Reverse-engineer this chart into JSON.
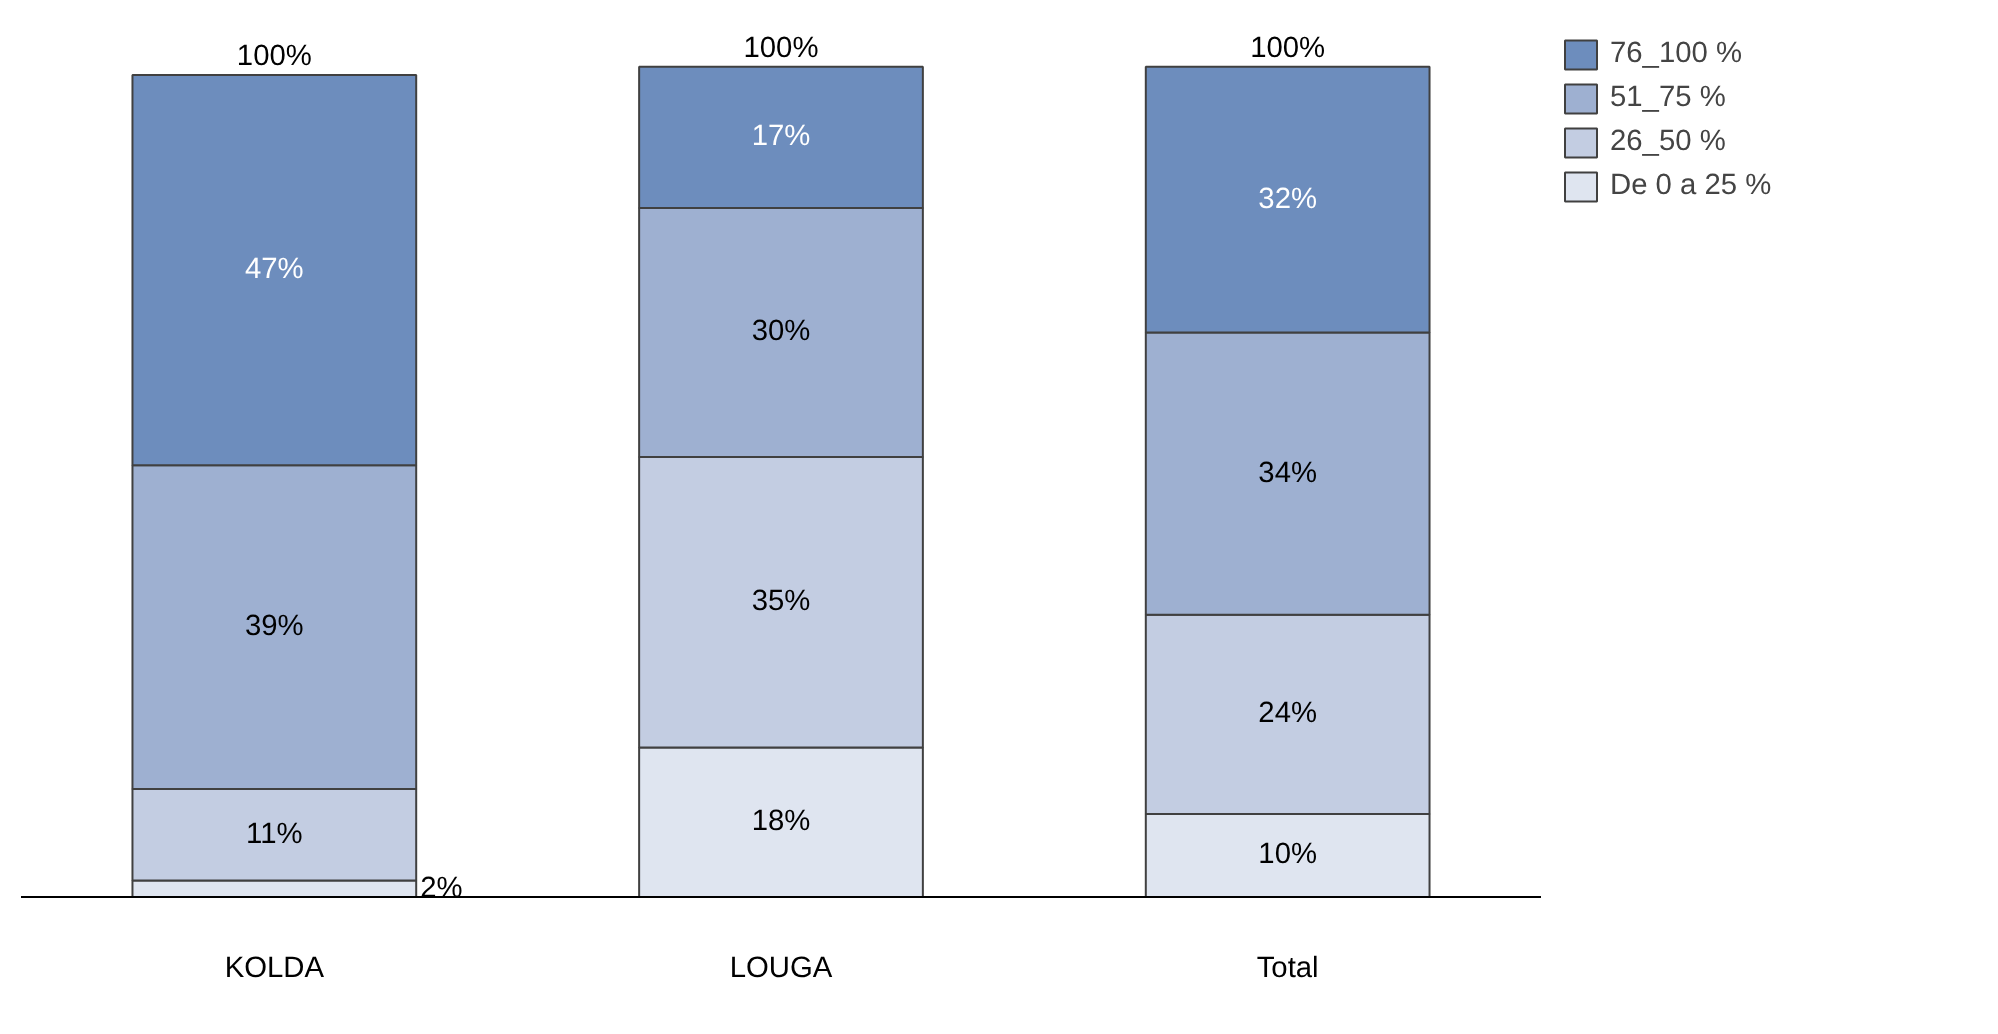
{
  "chart_data": {
    "type": "bar",
    "stacked": true,
    "categories": [
      "KOLDA",
      "LOUGA",
      "Total"
    ],
    "series": [
      {
        "name": "De 0 a 25 %",
        "color": "#dfe5f0",
        "values": [
          2,
          18,
          10
        ],
        "value_labels": [
          "2%",
          "18%",
          "10%"
        ]
      },
      {
        "name": "26_50 %",
        "color": "#c3cde2",
        "values": [
          11,
          35,
          24
        ],
        "value_labels": [
          "11%",
          "35%",
          "24%"
        ]
      },
      {
        "name": "51_75 %",
        "color": "#9eb0d1",
        "values": [
          39,
          30,
          34
        ],
        "value_labels": [
          "39%",
          "30%",
          "34%"
        ]
      },
      {
        "name": "76_100 %",
        "color": "#6d8dbd",
        "values": [
          47,
          17,
          32
        ],
        "value_labels": [
          "47%",
          "17%",
          "32%"
        ]
      }
    ],
    "totals": [
      "100%",
      "100%",
      "100%"
    ],
    "legend": "top right",
    "grid": false
  }
}
